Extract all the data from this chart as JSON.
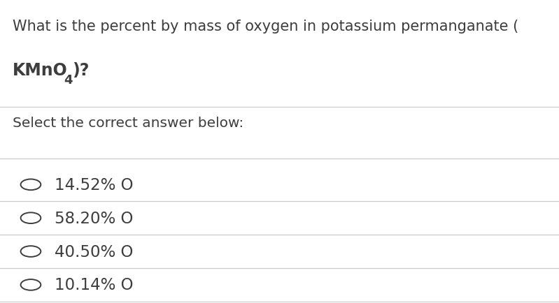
{
  "background_color": "#ffffff",
  "question_line1": "What is the percent by mass of oxygen in potassium permanganate (",
  "question_line2_main": "KMnO",
  "question_line2_sub": "4",
  "question_line2_end": ")?",
  "subtitle": "Select the correct answer below:",
  "options": [
    "14.52% O",
    "58.20% O",
    "40.50% O",
    "10.14% O"
  ],
  "text_color": "#3d3d3d",
  "line_color": "#cccccc",
  "question_fontsize": 15.0,
  "formula_fontsize": 17.0,
  "subtitle_fontsize": 14.5,
  "option_fontsize": 16.5,
  "circle_color": "#3d3d3d"
}
